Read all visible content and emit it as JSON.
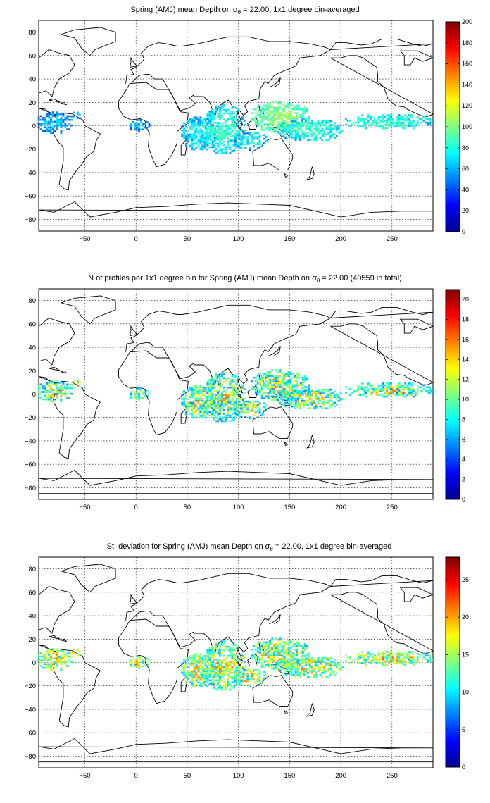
{
  "panels": [
    {
      "title_prefix": "Spring (AMJ) mean Depth on σ",
      "title_sub": "θ",
      "title_suffix": " = 22.00, 1x1 degree bin-averaged",
      "colorbar_ticks": [
        "0",
        "20",
        "40",
        "60",
        "80",
        "100",
        "120",
        "140",
        "160",
        "180",
        "200"
      ],
      "chart_data": {
        "type": "heatmap",
        "quantity": "mean depth",
        "cmap": "jet",
        "clim": [
          0,
          200
        ],
        "xlim": [
          -95,
          290
        ],
        "ylim": [
          -90,
          90
        ]
      }
    },
    {
      "title_prefix": "N of profiles per 1x1 degree bin for Spring (AMJ) mean Depth on σ",
      "title_sub": "θ",
      "title_suffix": " = 22.00 (40559 in total)",
      "colorbar_ticks": [
        "0",
        "2",
        "4",
        "6",
        "8",
        "10",
        "12",
        "14",
        "16",
        "18",
        "20"
      ],
      "chart_data": {
        "type": "heatmap",
        "quantity": "number of profiles",
        "cmap": "jet",
        "clim": [
          0,
          21
        ],
        "total_profiles": 40559,
        "xlim": [
          -95,
          290
        ],
        "ylim": [
          -90,
          90
        ]
      }
    },
    {
      "title_prefix": "St. deviation for Spring (AMJ) mean Depth on σ",
      "title_sub": "θ",
      "title_suffix": " = 22.00, 1x1 degree bin-averaged",
      "colorbar_ticks": [
        "0",
        "5",
        "10",
        "15",
        "20",
        "25"
      ],
      "chart_data": {
        "type": "heatmap",
        "quantity": "standard deviation of depth",
        "cmap": "jet",
        "clim": [
          0,
          28
        ],
        "xlim": [
          -95,
          290
        ],
        "ylim": [
          -90,
          90
        ]
      }
    }
  ],
  "axes": {
    "x_ticks": [
      -50,
      0,
      50,
      100,
      150,
      200,
      250
    ],
    "x_tick_labels": [
      "−50",
      "0",
      "50",
      "100",
      "150",
      "200",
      "250"
    ],
    "y_ticks": [
      80,
      60,
      40,
      20,
      0,
      -20,
      -40,
      -60,
      -80
    ],
    "y_tick_labels": [
      "80",
      "60",
      "40",
      "20",
      "0",
      "−20",
      "−40",
      "−60",
      "−80"
    ]
  }
}
